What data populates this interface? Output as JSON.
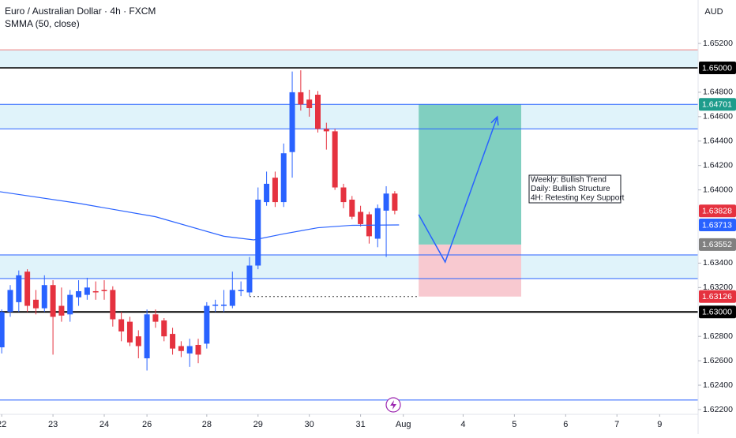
{
  "chart_data": {
    "type": "candlestick",
    "title": "Euro / Australian Dollar · 4h · FXCM",
    "currency": "AUD",
    "xlim": [
      -0.2,
      81.5
    ],
    "ylim": [
      1.62161,
      1.65556
    ],
    "xticks": [
      {
        "value": 0,
        "label": "22"
      },
      {
        "value": 6,
        "label": "23"
      },
      {
        "value": 12,
        "label": "24"
      },
      {
        "value": 17,
        "label": "26"
      },
      {
        "value": 24,
        "label": "28"
      },
      {
        "value": 30,
        "label": "29"
      },
      {
        "value": 36,
        "label": "30"
      },
      {
        "value": 42,
        "label": "31"
      },
      {
        "value": 47,
        "label": "Aug"
      },
      {
        "value": 54,
        "label": "4"
      },
      {
        "value": 60,
        "label": "5"
      },
      {
        "value": 66,
        "label": "6"
      },
      {
        "value": 72,
        "label": "7"
      },
      {
        "value": 77,
        "label": "9"
      }
    ],
    "yticks": [
      {
        "value": 1.652,
        "label": "1.65200"
      },
      {
        "value": 1.648,
        "label": "1.64800"
      },
      {
        "value": 1.646,
        "label": "1.64600"
      },
      {
        "value": 1.644,
        "label": "1.64400"
      },
      {
        "value": 1.642,
        "label": "1.64200"
      },
      {
        "value": 1.64,
        "label": "1.64000"
      },
      {
        "value": 1.634,
        "label": "1.63400"
      },
      {
        "value": 1.632,
        "label": "1.63200"
      },
      {
        "value": 1.628,
        "label": "1.62800"
      },
      {
        "value": 1.626,
        "label": "1.62600"
      },
      {
        "value": 1.624,
        "label": "1.62400"
      },
      {
        "value": 1.622,
        "label": "1.62200"
      }
    ],
    "up_color": "#2962ff",
    "down_color": "#e5323f",
    "open": [
      1.6271,
      1.63,
      1.6308,
      1.6333,
      1.631,
      1.6303,
      1.6322,
      1.6305,
      1.6298,
      1.6312,
      1.6314,
      1.6317,
      1.6318,
      1.6318,
      1.6294,
      1.6292,
      1.628,
      1.6262,
      1.6298,
      1.6293,
      1.6282,
      1.6272,
      1.6266,
      1.6273,
      1.6274,
      1.6305,
      1.6305,
      1.6305,
      1.6317,
      1.6316,
      1.6338,
      1.639,
      1.641,
      1.639,
      1.6431,
      1.648,
      1.6474,
      1.6478,
      1.645,
      1.6448,
      1.6402,
      1.6392,
      1.6382,
      1.638,
      1.636,
      1.6383,
      1.6397
    ],
    "high": [
      1.6302,
      1.6322,
      1.6334,
      1.6335,
      1.6318,
      1.633,
      1.6326,
      1.632,
      1.6318,
      1.6326,
      1.6328,
      1.6325,
      1.6326,
      1.6321,
      1.63,
      1.6296,
      1.6285,
      1.6302,
      1.6302,
      1.6295,
      1.6287,
      1.6276,
      1.6278,
      1.6278,
      1.6308,
      1.631,
      1.6318,
      1.6333,
      1.6325,
      1.6345,
      1.6402,
      1.6415,
      1.6415,
      1.6438,
      1.6497,
      1.6498,
      1.6482,
      1.6481,
      1.6455,
      1.645,
      1.6405,
      1.6395,
      1.6387,
      1.6382,
      1.6388,
      1.6403,
      1.6399
    ],
    "low": [
      1.6266,
      1.6296,
      1.63,
      1.63,
      1.6298,
      1.63,
      1.6265,
      1.6292,
      1.6292,
      1.6305,
      1.631,
      1.631,
      1.631,
      1.6288,
      1.6276,
      1.6272,
      1.6262,
      1.6252,
      1.6287,
      1.6276,
      1.6265,
      1.6263,
      1.6255,
      1.6258,
      1.627,
      1.63,
      1.63,
      1.6303,
      1.6313,
      1.6313,
      1.6335,
      1.6387,
      1.6386,
      1.6386,
      1.641,
      1.6465,
      1.646,
      1.6447,
      1.6433,
      1.64,
      1.6385,
      1.6376,
      1.637,
      1.6356,
      1.6353,
      1.6345,
      1.638
    ],
    "close": [
      1.63,
      1.6318,
      1.633,
      1.6305,
      1.6303,
      1.6322,
      1.6296,
      1.6297,
      1.6314,
      1.6317,
      1.632,
      1.6316,
      1.6317,
      1.6294,
      1.6284,
      1.6275,
      1.6272,
      1.6298,
      1.6292,
      1.628,
      1.627,
      1.6268,
      1.6272,
      1.6265,
      1.6305,
      1.6306,
      1.6306,
      1.6318,
      1.6318,
      1.6338,
      1.6392,
      1.6405,
      1.639,
      1.643,
      1.648,
      1.647,
      1.6467,
      1.645,
      1.6448,
      1.6402,
      1.639,
      1.6378,
      1.6372,
      1.6362,
      1.6385,
      1.6397,
      1.6383
    ],
    "indicator": {
      "name": "SMMA (50, close)",
      "color": "#2962ff",
      "x": [
        -0.2,
        9,
        18,
        26,
        29.5,
        33,
        37,
        41,
        46.5
      ],
      "values": [
        1.63985,
        1.6389,
        1.6378,
        1.6362,
        1.6359,
        1.6364,
        1.6369,
        1.6371,
        1.63713
      ]
    },
    "zones": [
      {
        "range": [
          1.65,
          1.65148
        ],
        "color": "#e0f3fa"
      },
      {
        "range": [
          1.645,
          1.64701
        ],
        "color": "#e0f3fa"
      },
      {
        "range": [
          1.63273,
          1.63467
        ],
        "color": "#e0f3fa"
      }
    ],
    "levels": [
      {
        "value": 1.65148,
        "color": "#f08080",
        "width": 1
      },
      {
        "value": 1.65,
        "color": "#000000",
        "width": 1.5
      },
      {
        "value": 1.64701,
        "color": "#2962ff",
        "width": 1
      },
      {
        "value": 1.645,
        "color": "#2962ff",
        "width": 1
      },
      {
        "value": 1.63467,
        "color": "#2962ff",
        "width": 1
      },
      {
        "value": 1.63273,
        "color": "#2962ff",
        "width": 1
      },
      {
        "value": 1.63,
        "color": "#000000",
        "width": 2
      },
      {
        "value": 1.62278,
        "color": "#2962ff",
        "width": 1
      }
    ],
    "position": {
      "x": [
        48.8,
        60.8
      ],
      "entry": 1.63552,
      "target": 1.64701,
      "stop": 1.63126,
      "profit_color": "#80cfc0",
      "loss_color": "#f8c9d0"
    },
    "projection": {
      "color": "#2962ff",
      "x": [
        48.8,
        51.9,
        58.0
      ],
      "values": [
        1.63797,
        1.63409,
        1.64599
      ]
    },
    "note": [
      "Weekly: Bullish Trend",
      "Daily: Bullish Structure",
      "4H: Retesting Key Support"
    ],
    "price_labels": [
      {
        "value": {
          "value": 1.65,
          "label": "1.65000"
        },
        "color": "#000000"
      },
      {
        "value": 1.64701,
        "color": "#1e9c8c"
      },
      {
        "value": 1.63828,
        "color": "#e5323f"
      },
      {
        "value": 1.63713,
        "color": "#2962ff"
      },
      {
        "value": 1.63552,
        "color": "#808080"
      },
      {
        "value": 1.63126,
        "color": "#e5323f"
      },
      {
        "value": {
          "value": 1.63,
          "label": "1.63000"
        },
        "color": "#000000"
      }
    ]
  }
}
